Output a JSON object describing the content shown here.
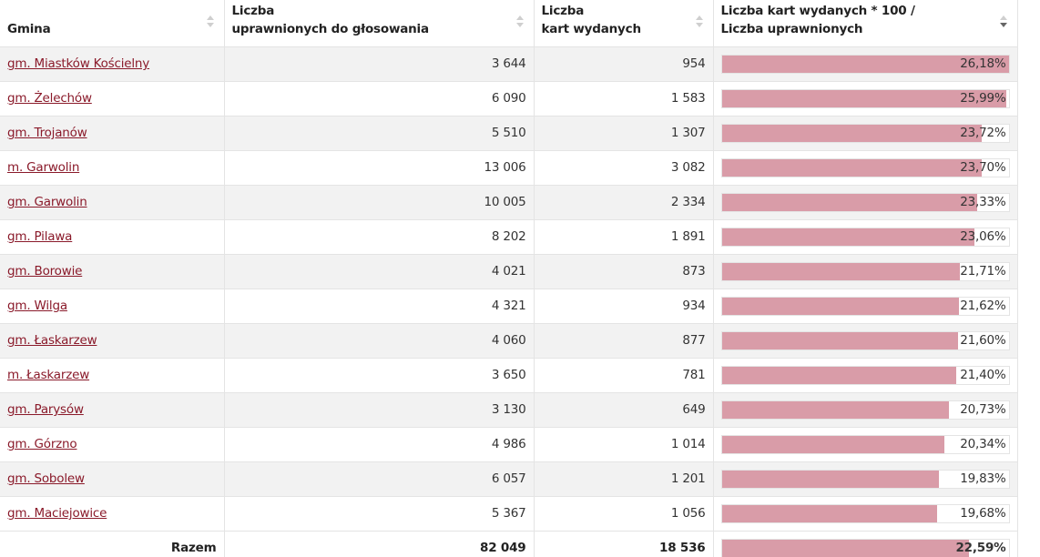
{
  "table": {
    "headers": {
      "gmina": "Gmina",
      "uprawnieni_line1": "Liczba",
      "uprawnieni_line2": "uprawnionych do głosowania",
      "karty_line1": "Liczba",
      "karty_line2": "kart wydanych",
      "frekwencja_line1": "Liczba kart wydanych * 100 /",
      "frekwencja_line2": "Liczba uprawnionych"
    },
    "sorted_column": "frekwencja",
    "sort_direction": "descending",
    "rows": [
      {
        "name": "gm. Miastków Kościelny",
        "uprawnieni": "3 644",
        "karty": "954",
        "pct_label": "26,18%",
        "pct": 26.18
      },
      {
        "name": "gm. Żelechów",
        "uprawnieni": "6 090",
        "karty": "1 583",
        "pct_label": "25,99%",
        "pct": 25.99
      },
      {
        "name": "gm. Trojanów",
        "uprawnieni": "5 510",
        "karty": "1 307",
        "pct_label": "23,72%",
        "pct": 23.72
      },
      {
        "name": "m. Garwolin",
        "uprawnieni": "13 006",
        "karty": "3 082",
        "pct_label": "23,70%",
        "pct": 23.7
      },
      {
        "name": "gm. Garwolin",
        "uprawnieni": "10 005",
        "karty": "2 334",
        "pct_label": "23,33%",
        "pct": 23.33
      },
      {
        "name": "gm. Pilawa",
        "uprawnieni": "8 202",
        "karty": "1 891",
        "pct_label": "23,06%",
        "pct": 23.06
      },
      {
        "name": "gm. Borowie",
        "uprawnieni": "4 021",
        "karty": "873",
        "pct_label": "21,71%",
        "pct": 21.71
      },
      {
        "name": "gm. Wilga",
        "uprawnieni": "4 321",
        "karty": "934",
        "pct_label": "21,62%",
        "pct": 21.62
      },
      {
        "name": "gm. Łaskarzew",
        "uprawnieni": "4 060",
        "karty": "877",
        "pct_label": "21,60%",
        "pct": 21.6
      },
      {
        "name": "m. Łaskarzew",
        "uprawnieni": "3 650",
        "karty": "781",
        "pct_label": "21,40%",
        "pct": 21.4
      },
      {
        "name": "gm. Parysów",
        "uprawnieni": "3 130",
        "karty": "649",
        "pct_label": "20,73%",
        "pct": 20.73
      },
      {
        "name": "gm. Górzno",
        "uprawnieni": "4 986",
        "karty": "1 014",
        "pct_label": "20,34%",
        "pct": 20.34
      },
      {
        "name": "gm. Sobolew",
        "uprawnieni": "6 057",
        "karty": "1 201",
        "pct_label": "19,83%",
        "pct": 19.83
      },
      {
        "name": "gm. Maciejowice",
        "uprawnieni": "5 367",
        "karty": "1 056",
        "pct_label": "19,68%",
        "pct": 19.68
      }
    ],
    "total": {
      "label": "Razem",
      "uprawnieni": "82 049",
      "karty": "18 536",
      "pct_label": "22,59%",
      "pct": 22.59
    },
    "bar_scale_max_pct": 26.18,
    "colors": {
      "bar_fill": "#d99ca8",
      "link": "#8a1a2a",
      "row_stripe": "#f2f2f2"
    }
  }
}
